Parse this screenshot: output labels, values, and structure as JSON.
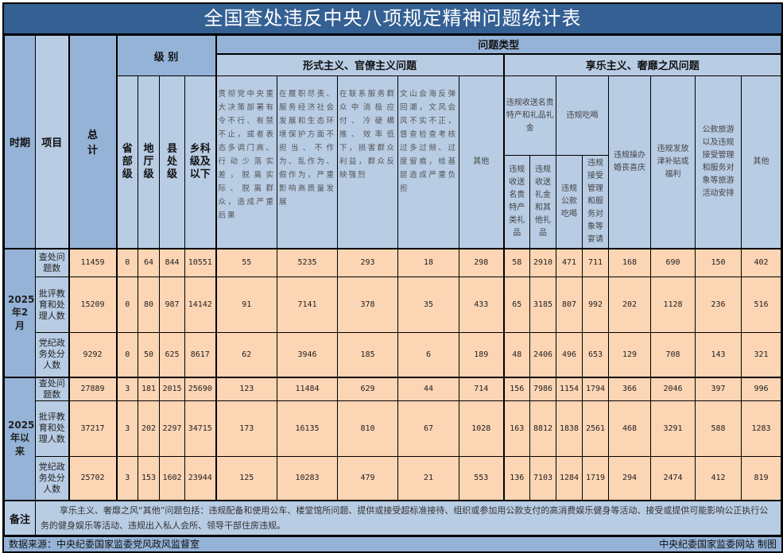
{
  "title": "全国查处违反中央八项规定精神问题统计表",
  "header": {
    "period": "时期",
    "item": "项目",
    "total": "总计",
    "level": "级 别",
    "levels": [
      "省部级",
      "地厅级",
      "县处级",
      "乡科级及以下"
    ],
    "problem_type": "问题类型",
    "formalism": "形式主义、官僚主义问题",
    "formalism_cols": [
      "贯彻党中央重大决策部署有令不行、有禁不止，或者表态多调门高、行动少落实差，脱离实际、脱离群众，造成严重后果",
      "在履职尽责、服务经济社会发展和生态环境保护方面不担当、不作为、乱作为、假作为，严重影响高质量发展",
      "在联系服务群众中消极应付、冷硬横推、效率低下，损害群众利益，群众反映强烈",
      "文山会海反弹回潮，文风会风不实不正，督查检查考核过多过频、过度留痕，给基层造成严重负担",
      "其他"
    ],
    "hedonism": "享乐主义、奢靡之风问题",
    "gift_group": "违规收送名贵特产和礼品礼金",
    "gift_cols": [
      "违规收送名贵特产类礼品",
      "违规收送礼金和其他礼品"
    ],
    "dining_group": "违规吃喝",
    "dining_cols": [
      "违规公款吃喝",
      "违规接受管理和服务对象等宴请"
    ],
    "hedonism_cols": [
      "违规操办婚丧喜庆",
      "违规发放津补贴或福利",
      "公款旅游以及违规接受管理和服务对象等旅游活动安排",
      "其他"
    ]
  },
  "groups": [
    {
      "period": "2025年2月",
      "rows": [
        {
          "item": "查处问题数",
          "values": [
            11459,
            0,
            64,
            844,
            10551,
            55,
            5235,
            293,
            18,
            298,
            58,
            2910,
            471,
            711,
            168,
            690,
            150,
            402
          ]
        },
        {
          "item": "批评教育和处理人数",
          "values": [
            15209,
            0,
            80,
            987,
            14142,
            91,
            7141,
            378,
            35,
            433,
            65,
            3185,
            807,
            992,
            202,
            1128,
            236,
            516
          ]
        },
        {
          "item": "党纪政务处分人数",
          "values": [
            9292,
            0,
            50,
            625,
            8617,
            62,
            3946,
            185,
            6,
            189,
            48,
            2406,
            496,
            653,
            129,
            708,
            143,
            321
          ]
        }
      ]
    },
    {
      "period": "2025年以来",
      "rows": [
        {
          "item": "查处问题数",
          "values": [
            27889,
            3,
            181,
            2015,
            25690,
            123,
            11484,
            629,
            44,
            714,
            156,
            7986,
            1154,
            1794,
            366,
            2046,
            397,
            996
          ]
        },
        {
          "item": "批评教育和处理人数",
          "values": [
            37217,
            3,
            202,
            2297,
            34715,
            173,
            16135,
            810,
            67,
            1028,
            163,
            8812,
            1838,
            2561,
            468,
            3291,
            588,
            1283
          ]
        },
        {
          "item": "党纪政务处分人数",
          "values": [
            25702,
            3,
            153,
            1602,
            23944,
            125,
            10283,
            479,
            21,
            553,
            136,
            7103,
            1284,
            1719,
            294,
            2474,
            412,
            819
          ]
        }
      ]
    }
  ],
  "note": {
    "label": "备注",
    "text": "享乐主义、奢靡之风“其他”问题包括：违规配备和使用公车、楼堂馆所问题、提供或接受超标准接待、组织或参加用公款支付的高消费娱乐健身等活动、接受或提供可能影响公正执行公务的健身娱乐等活动、违规出入私人会所、领导干部住房违规。"
  },
  "footer": {
    "source": "数据来源：中央纪委国家监委党风政风监督室",
    "credit": "中央纪委国家监委网站 制图"
  }
}
